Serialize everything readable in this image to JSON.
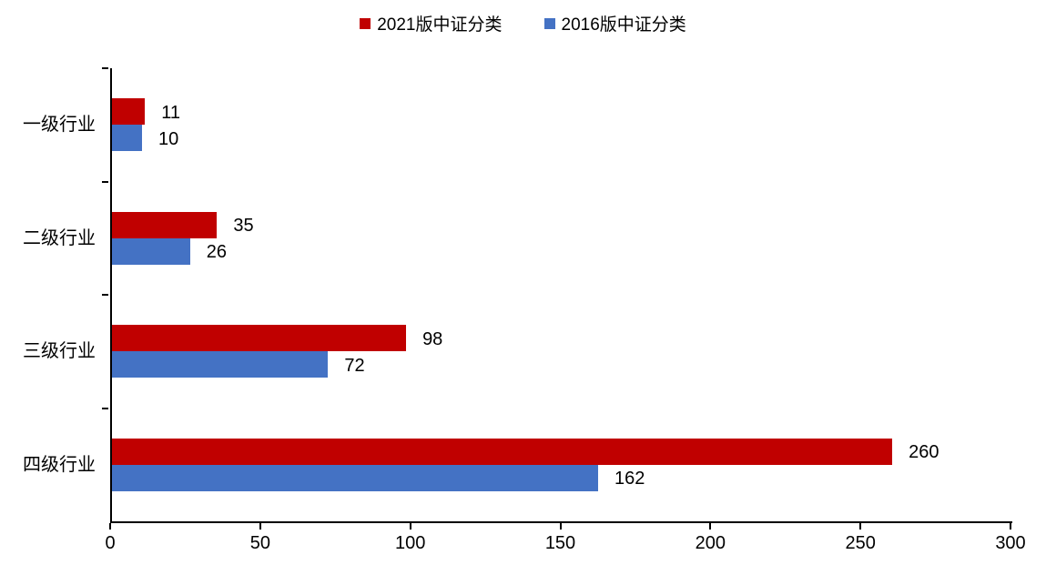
{
  "chart_data": {
    "type": "bar",
    "orientation": "horizontal",
    "title": "",
    "categories": [
      "一级行业",
      "二级行业",
      "三级行业",
      "四级行业"
    ],
    "series": [
      {
        "name": "2021版中证分类",
        "color": "#C00000",
        "values": [
          11,
          35,
          98,
          260
        ]
      },
      {
        "name": "2016版中证分类",
        "color": "#4472C4",
        "values": [
          10,
          26,
          72,
          162
        ]
      }
    ],
    "xlim": [
      0,
      300
    ],
    "x_ticks": [
      0,
      50,
      100,
      150,
      200,
      250,
      300
    ],
    "legend_position": "top-center",
    "grid": false,
    "value_labels": true,
    "axis_color": "#000000",
    "text_color": "#000000",
    "background_color": "#ffffff"
  }
}
